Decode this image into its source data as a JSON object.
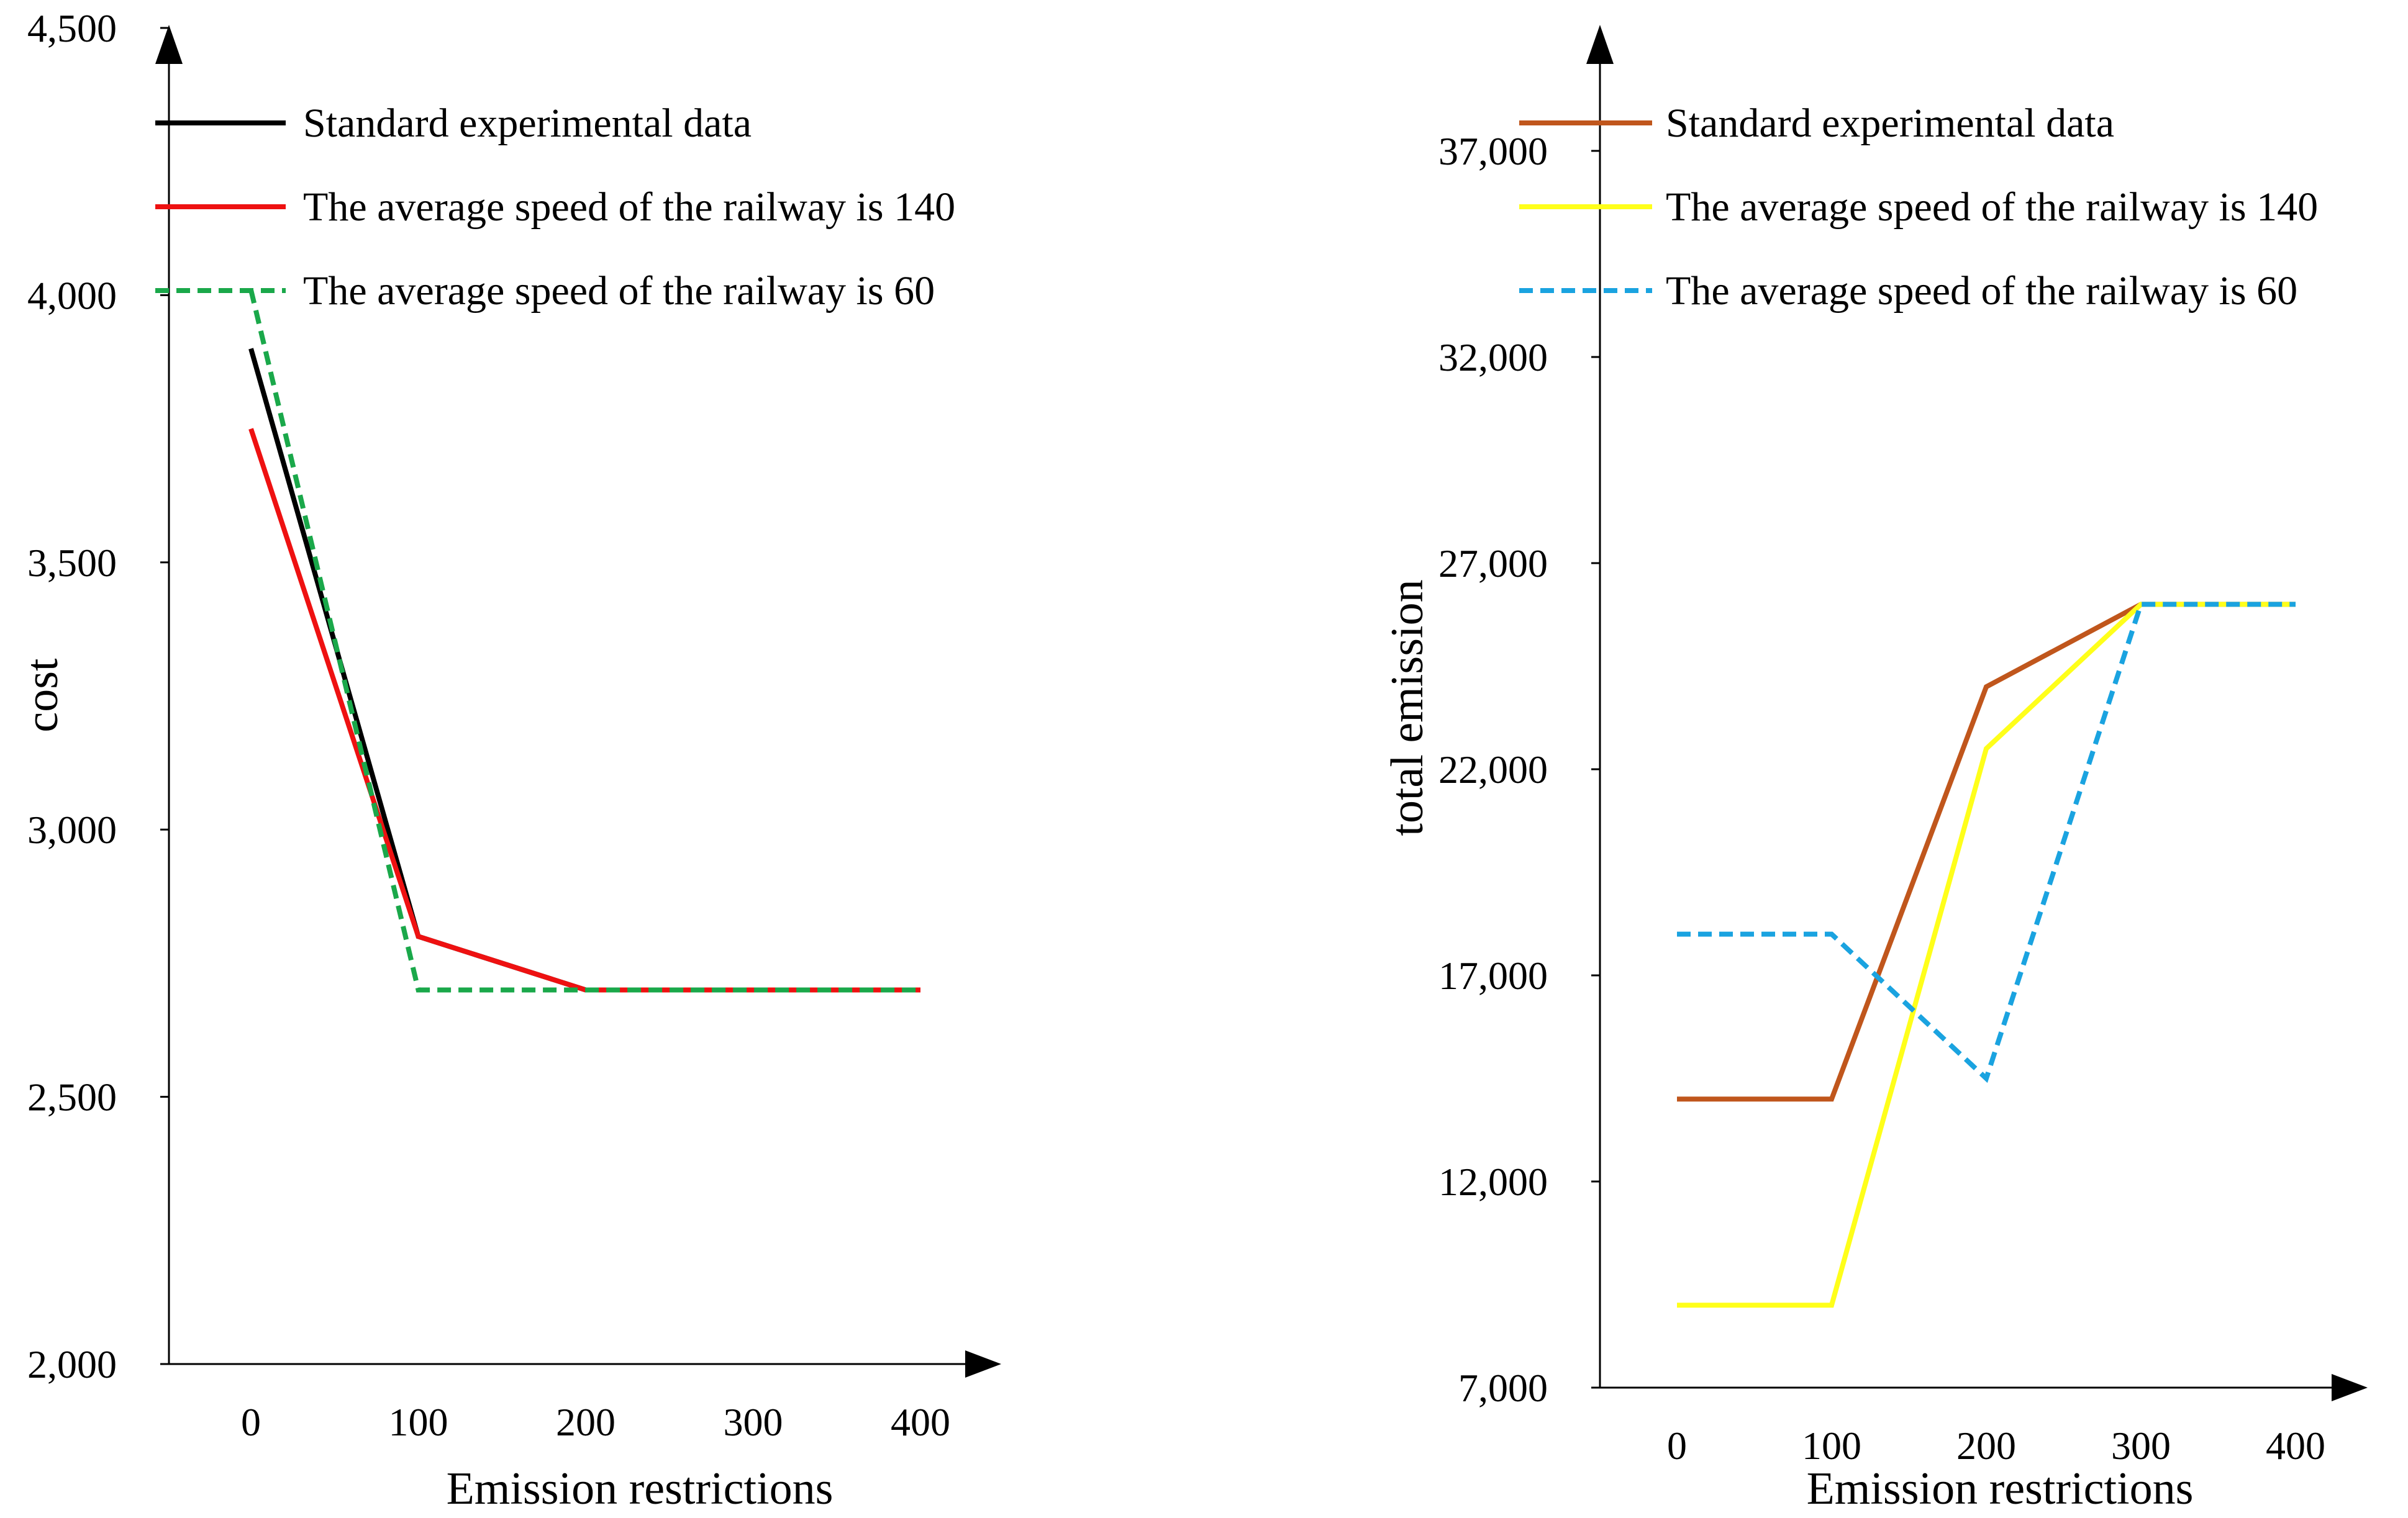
{
  "chart_data": [
    {
      "type": "line",
      "title": "",
      "xlabel": "Emission restrictions",
      "ylabel": "cost",
      "categories": [
        "0",
        "100",
        "200",
        "300",
        "400"
      ],
      "x": [
        0,
        100,
        200,
        300,
        400
      ],
      "xlim": [
        -50,
        450
      ],
      "ylim": [
        2000,
        4500
      ],
      "yticks": [
        2000,
        2500,
        3000,
        3500,
        4000,
        4500
      ],
      "ytick_labels": [
        "2,000",
        "2,500",
        "3,000",
        "3,500",
        "4,000",
        "4,500"
      ],
      "grid": false,
      "legend_position": "top-left",
      "series": [
        {
          "name": "Standard experimental data",
          "color": "#000000",
          "dash": "solid",
          "values": [
            3900,
            2800,
            2700,
            2700,
            2700
          ]
        },
        {
          "name": "The average speed of the railway is 140",
          "color": "#ee1111",
          "dash": "solid",
          "values": [
            3750,
            2800,
            2700,
            2700,
            2700
          ]
        },
        {
          "name": "The average speed of the railway is 60",
          "color": "#1aa84a",
          "dash": "dashed",
          "values": [
            4010,
            2700,
            2700,
            2700,
            2700
          ]
        }
      ]
    },
    {
      "type": "line",
      "title": "",
      "xlabel": "Emission restrictions",
      "ylabel": "total emission",
      "categories": [
        "0",
        "100",
        "200",
        "300",
        "400"
      ],
      "x": [
        0,
        100,
        200,
        300,
        400
      ],
      "xlim": [
        -50,
        450
      ],
      "ylim": [
        7000,
        38500
      ],
      "yticks": [
        7000,
        12000,
        17000,
        22000,
        27000,
        32000,
        37000
      ],
      "ytick_labels": [
        "7,000",
        "12,000",
        "17,000",
        "22,000",
        "27,000",
        "32,000",
        "37,000"
      ],
      "grid": false,
      "legend_position": "top-left",
      "series": [
        {
          "name": "Standard experimental data",
          "color": "#c0561c",
          "dash": "solid",
          "values": [
            14000,
            14000,
            24000,
            26000,
            26000
          ]
        },
        {
          "name": "The average speed of the railway is 140",
          "color": "#ffff1a",
          "dash": "solid",
          "values": [
            9000,
            9000,
            22500,
            26000,
            26000
          ]
        },
        {
          "name": "The average speed of the railway is 60",
          "color": "#1aa3e0",
          "dash": "dashed",
          "values": [
            18000,
            18000,
            14500,
            26000,
            26000
          ]
        }
      ]
    }
  ]
}
